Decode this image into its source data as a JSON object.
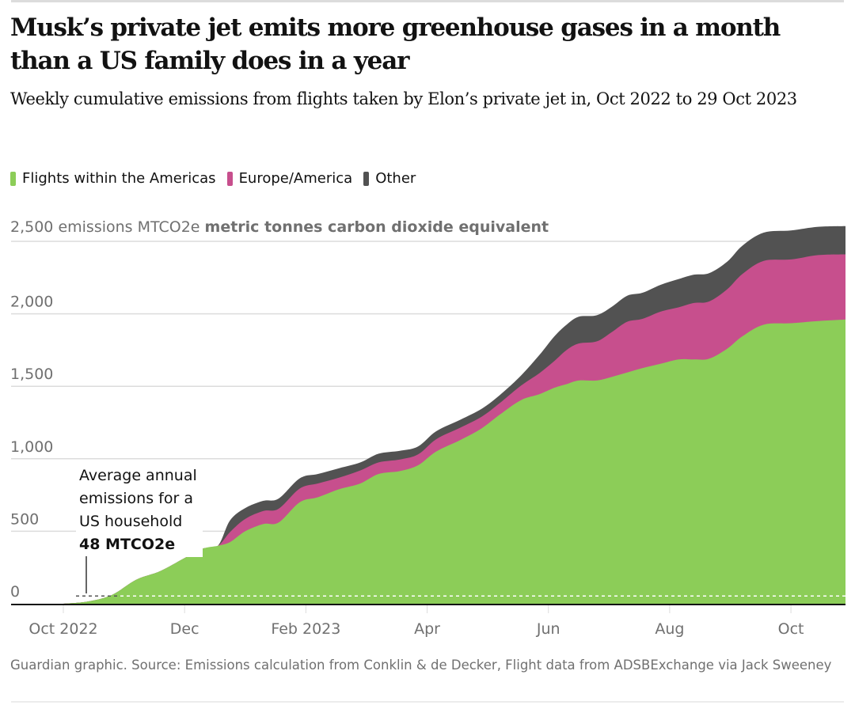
{
  "header": {
    "title": "Musk’s private jet emits more greenhouse gases in a month than a US family does in a year",
    "subtitle": "Weekly cumulative emissions from flights taken by Elon’s private jet in, Oct 2022 to 29 Oct 2023"
  },
  "legend": [
    {
      "label": "Flights within the Americas",
      "color": "#8ccd58"
    },
    {
      "label": "Europe/America",
      "color": "#c74f8d"
    },
    {
      "label": "Other",
      "color": "#525252"
    }
  ],
  "annotation": {
    "line1": "Average annual",
    "line2": "emissions for a",
    "line3": "US household",
    "value": "48 MTCO2e",
    "reference_value": 48
  },
  "footer": {
    "source": "Guardian graphic. Source: Emissions calculation from Conklin & de Decker, Flight data from ADSBExchange via Jack Sweeney"
  },
  "chart_data": {
    "type": "area",
    "stacked": true,
    "title": "Musk’s private jet emits more greenhouse gases in a month than a US family does in a year",
    "subtitle": "Weekly cumulative emissions from flights taken by Elon’s private jet in, Oct 2022 to 29 Oct 2023",
    "ylabel_prefix": "emissions MTCO2e",
    "ylabel_bold": "metric tonnes carbon dioxide equivalent",
    "xlabel": "",
    "ylim": [
      0,
      2500
    ],
    "yticks": [
      0,
      500,
      1000,
      1500,
      2000,
      2500
    ],
    "ytick_labels": [
      "0",
      "500",
      "1,000",
      "1,500",
      "2,000",
      "2,500"
    ],
    "xlim_months": [
      0,
      12.9
    ],
    "xticks_months": [
      0,
      2,
      4,
      6,
      8,
      10,
      12
    ],
    "xtick_labels": [
      "Oct 2022",
      "Dec",
      "Feb 2023",
      "Apr",
      "Jun",
      "Aug",
      "Oct"
    ],
    "grid": true,
    "legend_position": "top-left",
    "reference_line": {
      "value": 48,
      "style": "dashed",
      "label": "Average annual emissions for a US household 48 MTCO2e"
    },
    "x_months": [
      0,
      0.4,
      0.8,
      1.2,
      1.6,
      2.0,
      2.3,
      2.55,
      2.75,
      3.0,
      3.3,
      3.55,
      3.9,
      4.2,
      4.55,
      4.9,
      5.2,
      5.55,
      5.85,
      6.15,
      6.55,
      6.9,
      7.2,
      7.55,
      7.85,
      8.1,
      8.3,
      8.5,
      8.8,
      9.05,
      9.3,
      9.55,
      9.85,
      10.15,
      10.4,
      10.65,
      10.95,
      11.2,
      11.55,
      12.0,
      12.45,
      12.9
    ],
    "series": [
      {
        "name": "Flights within the Americas",
        "color": "#8ccd58",
        "values": [
          0,
          15,
          60,
          165,
          225,
          315,
          380,
          400,
          425,
          500,
          550,
          560,
          700,
          735,
          790,
          830,
          895,
          915,
          955,
          1050,
          1130,
          1210,
          1305,
          1405,
          1445,
          1490,
          1515,
          1540,
          1540,
          1565,
          1595,
          1625,
          1655,
          1685,
          1685,
          1690,
          1760,
          1845,
          1925,
          1935,
          1950,
          1960
        ]
      },
      {
        "name": "Europe/America",
        "color": "#c74f8d",
        "values": [
          0,
          0,
          0,
          0,
          0,
          0,
          0,
          0,
          70,
          85,
          90,
          95,
          95,
          95,
          80,
          90,
          80,
          80,
          75,
          85,
          85,
          80,
          80,
          100,
          145,
          185,
          235,
          255,
          270,
          310,
          350,
          340,
          360,
          360,
          390,
          395,
          410,
          430,
          440,
          440,
          455,
          450
        ]
      },
      {
        "name": "Other",
        "color": "#525252",
        "values": [
          0,
          0,
          0,
          0,
          0,
          0,
          0,
          0,
          80,
          75,
          70,
          70,
          70,
          65,
          65,
          55,
          60,
          60,
          55,
          55,
          55,
          55,
          55,
          70,
          125,
          170,
          175,
          185,
          180,
          175,
          180,
          180,
          185,
          195,
          195,
          195,
          190,
          195,
          195,
          200,
          195,
          195
        ]
      }
    ]
  }
}
